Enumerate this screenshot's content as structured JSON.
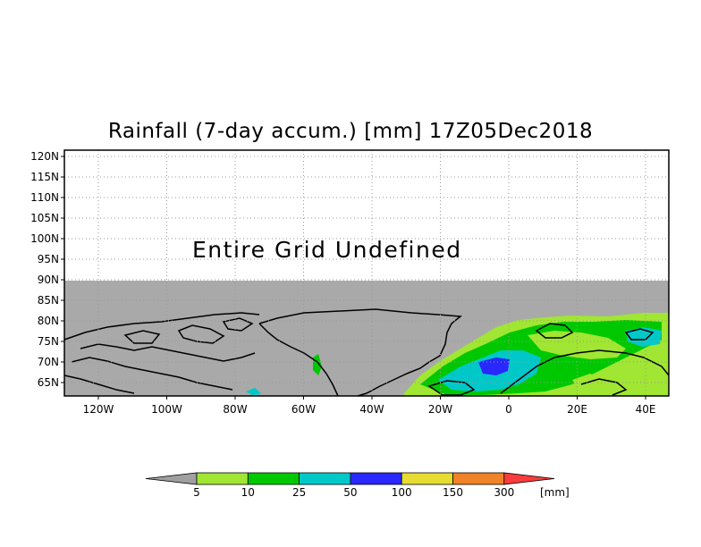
{
  "title": "Rainfall (7-day accum.) [mm] 17Z05Dec2018",
  "message": "Entire Grid Undefined",
  "lat_labels": [
    "120N",
    "115N",
    "110N",
    "105N",
    "100N",
    "95N",
    "90N",
    "85N",
    "80N",
    "75N",
    "70N",
    "65N"
  ],
  "lon_labels": [
    "120W",
    "100W",
    "80W",
    "60W",
    "40W",
    "20W",
    "0",
    "20E",
    "40E"
  ],
  "colorbar": {
    "ticks": [
      "5",
      "10",
      "25",
      "50",
      "100",
      "150",
      "300"
    ],
    "unit": "[mm]",
    "colors": [
      "#a0a0a0",
      "#a0e632",
      "#00c800",
      "#00c8c8",
      "#2828ff",
      "#e6dc32",
      "#f08228",
      "#fa3c3c"
    ]
  },
  "colors": {
    "undefined_fill": "#a9a9a9",
    "coastline": "#000000"
  }
}
